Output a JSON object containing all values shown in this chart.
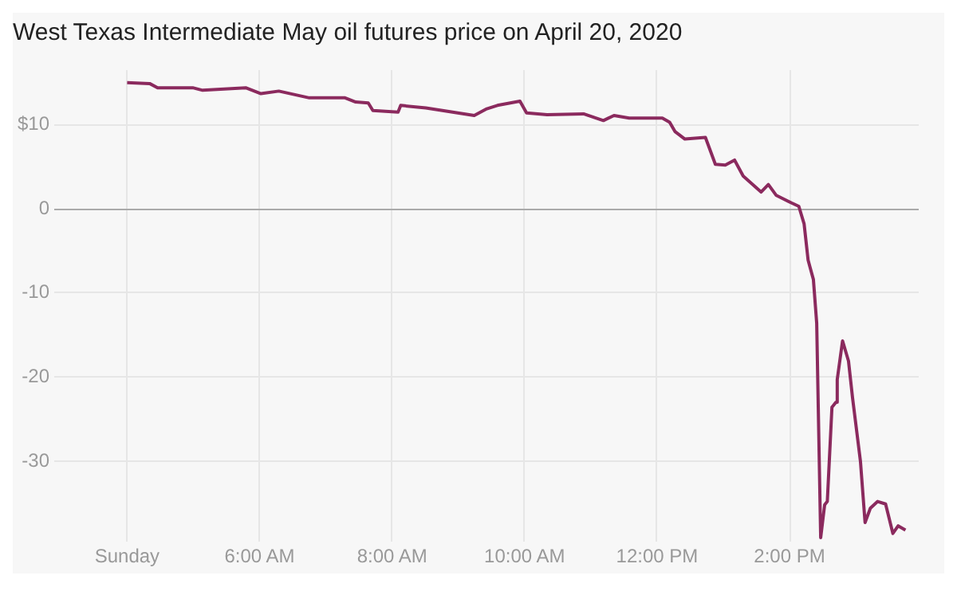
{
  "chart_data": {
    "type": "line",
    "title": "West Texas Intermediate May oil futures price on April 20, 2020",
    "x": [
      4.0,
      4.34,
      4.46,
      4.99,
      5.14,
      5.79,
      6.02,
      6.29,
      6.75,
      7.29,
      7.45,
      7.64,
      7.71,
      8.09,
      8.13,
      8.51,
      9.24,
      9.43,
      9.59,
      9.93,
      10.03,
      10.34,
      10.89,
      11.19,
      11.35,
      11.58,
      12.08,
      12.19,
      12.27,
      12.42,
      12.73,
      12.88,
      13.03,
      13.17,
      13.3,
      13.57,
      13.68,
      13.8,
      14.03,
      14.14,
      14.22,
      14.28,
      14.36,
      14.41,
      14.47,
      14.53,
      14.57,
      14.64,
      14.7,
      14.72,
      14.8,
      14.89,
      14.95,
      15.07,
      15.14,
      15.22,
      15.33,
      15.45,
      15.56,
      15.64,
      15.75
    ],
    "series": [
      {
        "color": "#8b2a5e",
        "values": [
          15.0,
          14.9,
          14.4,
          14.4,
          14.1,
          14.4,
          13.7,
          14.0,
          13.2,
          13.2,
          12.7,
          12.6,
          11.7,
          11.5,
          12.3,
          12.0,
          11.1,
          11.9,
          12.3,
          12.8,
          11.4,
          11.2,
          11.3,
          10.5,
          11.1,
          10.8,
          10.8,
          10.3,
          9.2,
          8.3,
          8.5,
          5.3,
          5.2,
          5.8,
          3.9,
          2.0,
          2.9,
          1.6,
          0.7,
          0.3,
          -1.8,
          -6.1,
          -8.4,
          -13.6,
          -39.1,
          -35.2,
          -34.8,
          -23.6,
          -23.0,
          -20.3,
          -15.7,
          -18.1,
          -22.4,
          -30.0,
          -37.3,
          -35.6,
          -34.8,
          -35.1,
          -38.6,
          -37.7,
          -38.2
        ]
      }
    ],
    "xlim": [
      2.9,
      15.95
    ],
    "xticks": [
      {
        "value": 4,
        "label": "Sunday"
      },
      {
        "value": 6,
        "label": "6:00 AM"
      },
      {
        "value": 8,
        "label": "8:00 AM"
      },
      {
        "value": 10,
        "label": "10:00 AM"
      },
      {
        "value": 12,
        "label": "12:00 PM"
      },
      {
        "value": 14,
        "label": "2:00 PM"
      }
    ],
    "ylim": [
      -39.5,
      16.5
    ],
    "yticks": [
      {
        "value": 10,
        "label": "$10"
      },
      0,
      -10,
      -20,
      -30
    ],
    "grid": true,
    "legend": false,
    "marker": "none",
    "line_style": "solid"
  }
}
